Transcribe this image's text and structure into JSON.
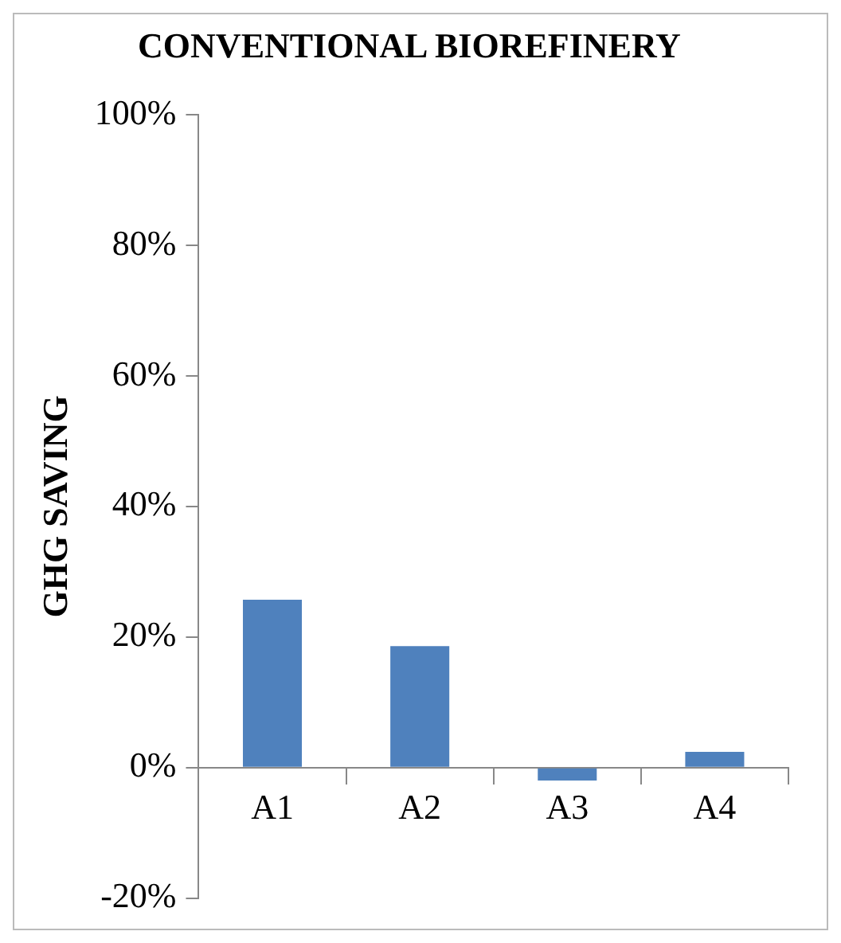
{
  "chart_data": {
    "type": "bar",
    "title": "CONVENTIONAL BIOREFINERY",
    "ylabel": "GHG SAVING",
    "categories": [
      "A1",
      "A2",
      "A3",
      "A4"
    ],
    "values": [
      25.7,
      18.6,
      -2.0,
      2.4
    ],
    "color": "#4f81bd",
    "ylim": [
      -20,
      100
    ],
    "yticks": [
      {
        "value": -20,
        "label": "-20%"
      },
      {
        "value": 0,
        "label": "0%"
      },
      {
        "value": 20,
        "label": "20%"
      },
      {
        "value": 40,
        "label": "40%"
      },
      {
        "value": 60,
        "label": "60%"
      },
      {
        "value": 80,
        "label": "80%"
      },
      {
        "value": 100,
        "label": "100%"
      }
    ],
    "grid": false,
    "legend": false
  }
}
